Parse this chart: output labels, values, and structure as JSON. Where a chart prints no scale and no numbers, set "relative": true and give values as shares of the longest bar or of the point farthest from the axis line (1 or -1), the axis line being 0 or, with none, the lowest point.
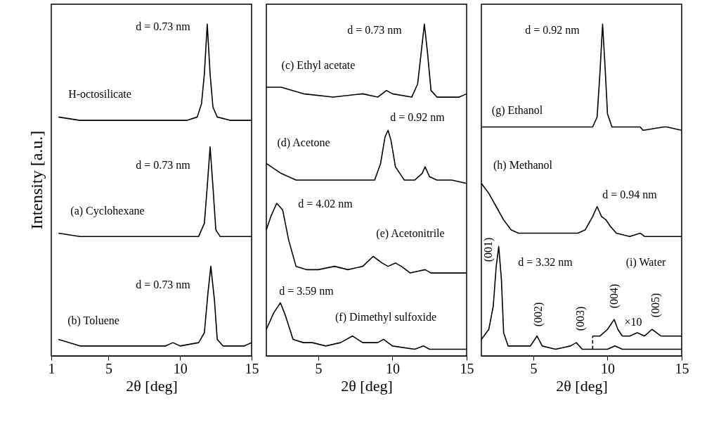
{
  "chart_data": [
    {
      "type": "line",
      "relative": true,
      "xlabel": "2θ [deg]",
      "ylabel": "Intensity [a.u.]",
      "xlim": [
        1,
        15
      ],
      "xticks": [
        1,
        5,
        10,
        15
      ],
      "series": [
        {
          "color": "#000000",
          "x": [
            1.5,
            3,
            8,
            10.5,
            11.2,
            11.5,
            11.7,
            11.9,
            12.1,
            12.3,
            12.6,
            13.5,
            15
          ],
          "values": [
            0.72,
            0.71,
            0.71,
            0.71,
            0.72,
            0.76,
            0.85,
            1.0,
            0.85,
            0.75,
            0.72,
            0.71,
            0.71
          ]
        },
        {
          "color": "#000000",
          "x": [
            1.5,
            3,
            10.5,
            11.3,
            11.7,
            11.9,
            12.1,
            12.3,
            12.5,
            12.8,
            15
          ],
          "values": [
            0.37,
            0.36,
            0.36,
            0.36,
            0.4,
            0.51,
            0.63,
            0.51,
            0.38,
            0.36,
            0.36
          ]
        },
        {
          "color": "#000000",
          "x": [
            1.5,
            3,
            9,
            9.5,
            10,
            11.3,
            11.7,
            11.95,
            12.15,
            12.4,
            12.6,
            13,
            14.5,
            15
          ],
          "values": [
            0.05,
            0.03,
            0.03,
            0.04,
            0.03,
            0.04,
            0.07,
            0.19,
            0.27,
            0.17,
            0.05,
            0.03,
            0.03,
            0.04
          ]
        }
      ],
      "annotations": [
        "d = 0.73 nm",
        "H-octosilicate",
        "d = 0.73 nm",
        "(a) Cyclohexane",
        "d = 0.73 nm",
        "(b) Toluene"
      ]
    },
    {
      "type": "line",
      "relative": true,
      "xlabel": "2θ [deg]",
      "xlim": [
        1.5,
        15
      ],
      "xticks": [
        5,
        10,
        15
      ],
      "series": [
        {
          "color": "#000000",
          "x": [
            1.5,
            2.5,
            4,
            6,
            8,
            9,
            9.6,
            10,
            11.3,
            11.7,
            11.95,
            12.15,
            12.35,
            12.6,
            13,
            14.5,
            15
          ],
          "values": [
            0.81,
            0.81,
            0.79,
            0.78,
            0.79,
            0.78,
            0.8,
            0.79,
            0.78,
            0.82,
            0.92,
            1.0,
            0.92,
            0.8,
            0.78,
            0.78,
            0.79
          ]
        },
        {
          "color": "#000000",
          "x": [
            1.5,
            2.5,
            3.5,
            5,
            8,
            8.8,
            9.2,
            9.5,
            9.7,
            9.9,
            10.2,
            10.8,
            11.5,
            12,
            12.2,
            12.5,
            13,
            14,
            15
          ],
          "values": [
            0.58,
            0.55,
            0.53,
            0.53,
            0.53,
            0.53,
            0.58,
            0.66,
            0.68,
            0.65,
            0.57,
            0.53,
            0.53,
            0.55,
            0.57,
            0.54,
            0.53,
            0.53,
            0.52
          ]
        },
        {
          "color": "#000000",
          "x": [
            1.5,
            1.8,
            2.2,
            2.6,
            3,
            3.5,
            4.2,
            5,
            6.1,
            7,
            8,
            8.7,
            9.3,
            9.7,
            10.2,
            10.6,
            11.2,
            12.2,
            12.6,
            15
          ],
          "values": [
            0.38,
            0.42,
            0.46,
            0.44,
            0.35,
            0.27,
            0.26,
            0.26,
            0.27,
            0.26,
            0.27,
            0.3,
            0.28,
            0.27,
            0.28,
            0.27,
            0.25,
            0.26,
            0.25,
            0.25
          ]
        },
        {
          "color": "#000000",
          "x": [
            1.5,
            2,
            2.45,
            2.8,
            3.3,
            4,
            4.6,
            5.5,
            6.5,
            7.3,
            8,
            9,
            9.4,
            10,
            11.5,
            12.1,
            12.5,
            15
          ],
          "values": [
            0.08,
            0.13,
            0.16,
            0.12,
            0.05,
            0.04,
            0.04,
            0.03,
            0.04,
            0.06,
            0.04,
            0.04,
            0.05,
            0.03,
            0.02,
            0.03,
            0.02,
            0.02
          ]
        }
      ],
      "annotations": [
        "d = 0.73 nm",
        "(c) Ethyl acetate",
        "d = 0.92 nm",
        "(d) Acetone",
        "d = 4.02 nm",
        "(e) Acetonitrile",
        "d = 3.59 nm",
        "(f) Dimethyl sulfoxide"
      ]
    },
    {
      "type": "line",
      "relative": true,
      "xlabel": "2θ [deg]",
      "xlim": [
        1.5,
        15
      ],
      "xticks": [
        5,
        10,
        15
      ],
      "series": [
        {
          "color": "#000000",
          "x": [
            1.5,
            3,
            6,
            8,
            9,
            9.3,
            9.5,
            9.67,
            9.85,
            10,
            10.3,
            11,
            12,
            12.2,
            12.4,
            13.8,
            14,
            15
          ],
          "values": [
            0.69,
            0.69,
            0.69,
            0.69,
            0.69,
            0.72,
            0.86,
            1.0,
            0.86,
            0.73,
            0.69,
            0.69,
            0.69,
            0.69,
            0.68,
            0.69,
            0.69,
            0.68
          ]
        },
        {
          "color": "#000000",
          "x": [
            1.5,
            2,
            2.5,
            3,
            3.5,
            4,
            5,
            6,
            7,
            8,
            8.5,
            9,
            9.3,
            9.6,
            9.9,
            10.2,
            10.6,
            11.5,
            12.2,
            12.5,
            14,
            15
          ],
          "values": [
            0.52,
            0.49,
            0.45,
            0.41,
            0.38,
            0.37,
            0.37,
            0.37,
            0.37,
            0.37,
            0.38,
            0.42,
            0.45,
            0.42,
            0.41,
            0.39,
            0.37,
            0.36,
            0.37,
            0.36,
            0.36,
            0.36
          ]
        },
        {
          "color": "#000000",
          "x": [
            1.5,
            2,
            2.3,
            2.5,
            2.67,
            2.85,
            3,
            3.3,
            4,
            4.8,
            5.25,
            5.6,
            6.5,
            7.5,
            7.9,
            8.3,
            9,
            10,
            10.5,
            11,
            15
          ],
          "values": [
            0.05,
            0.08,
            0.15,
            0.27,
            0.33,
            0.23,
            0.07,
            0.03,
            0.03,
            0.03,
            0.06,
            0.03,
            0.02,
            0.03,
            0.04,
            0.02,
            0.02,
            0.02,
            0.03,
            0.02,
            0.02
          ]
        },
        {
          "color": "#000000",
          "x": [
            9,
            9.5,
            10,
            10.3,
            10.45,
            10.7,
            11,
            11.5,
            12,
            12.5,
            13,
            13.3,
            13.6,
            15
          ],
          "values": [
            0.06,
            0.06,
            0.08,
            0.1,
            0.11,
            0.08,
            0.06,
            0.06,
            0.07,
            0.06,
            0.08,
            0.07,
            0.06,
            0.06
          ]
        },
        {
          "color": "#000000",
          "line_style": "dashed",
          "x": [
            9,
            9
          ],
          "values": [
            0.02,
            0.06
          ]
        }
      ],
      "annotations": [
        "d = 0.92 nm",
        "(g) Ethanol",
        "(h) Methanol",
        "d = 0.94 nm",
        "(001)",
        "d = 3.32 nm",
        "(i) Water",
        "(002)",
        "(003)",
        "(004)",
        "×10",
        "(005)"
      ]
    }
  ]
}
